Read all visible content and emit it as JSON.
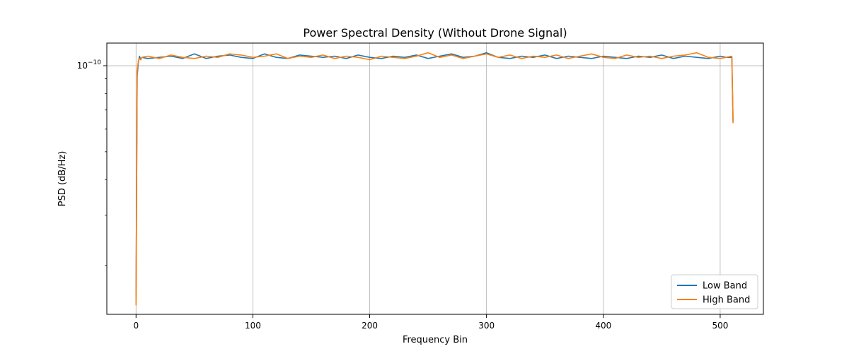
{
  "chart_data": {
    "type": "line",
    "title": "Power Spectral Density (Without Drone Signal)",
    "xlabel": "Frequency Bin",
    "ylabel": "PSD (dB/Hz)",
    "y_scale": "log",
    "xlim": [
      -25,
      537
    ],
    "ylim": [
      1.35e-11,
      1.2e-10
    ],
    "x_ticks": [
      0,
      100,
      200,
      300,
      400,
      500
    ],
    "x_tick_labels": [
      "0",
      "100",
      "200",
      "300",
      "400",
      "500"
    ],
    "y_ticks": [
      1e-10
    ],
    "y_tick_labels": [
      {
        "base": "10",
        "exp": "−10"
      }
    ],
    "y_minor_ticks": [
      2e-11,
      3e-11,
      4e-11,
      5e-11,
      6e-11,
      7e-11,
      8e-11,
      9e-11
    ],
    "grid": true,
    "legend_position": "lower-right",
    "series": [
      {
        "name": "Low Band",
        "color": "#1f77b4",
        "x": [
          0,
          1,
          2,
          3,
          4,
          5,
          10,
          20,
          30,
          40,
          50,
          60,
          70,
          80,
          90,
          100,
          110,
          120,
          130,
          140,
          150,
          160,
          170,
          180,
          190,
          200,
          210,
          220,
          230,
          240,
          250,
          260,
          270,
          280,
          290,
          300,
          310,
          320,
          330,
          340,
          350,
          360,
          370,
          380,
          390,
          400,
          410,
          420,
          430,
          440,
          450,
          460,
          470,
          480,
          490,
          500,
          505,
          510,
          511
        ],
        "y": [
          1.5e-11,
          9.2e-11,
          1.03e-10,
          1.08e-10,
          1.05e-10,
          1.07e-10,
          1.06e-10,
          1.07e-10,
          1.08e-10,
          1.06e-10,
          1.1e-10,
          1.06e-10,
          1.08e-10,
          1.09e-10,
          1.07e-10,
          1.06e-10,
          1.1e-10,
          1.07e-10,
          1.06e-10,
          1.09e-10,
          1.08e-10,
          1.07e-10,
          1.08e-10,
          1.06e-10,
          1.09e-10,
          1.07e-10,
          1.06e-10,
          1.08e-10,
          1.07e-10,
          1.09e-10,
          1.06e-10,
          1.08e-10,
          1.1e-10,
          1.07e-10,
          1.08e-10,
          1.11e-10,
          1.07e-10,
          1.06e-10,
          1.08e-10,
          1.07e-10,
          1.09e-10,
          1.06e-10,
          1.08e-10,
          1.07e-10,
          1.06e-10,
          1.08e-10,
          1.07e-10,
          1.06e-10,
          1.08e-10,
          1.07e-10,
          1.09e-10,
          1.06e-10,
          1.08e-10,
          1.07e-10,
          1.06e-10,
          1.08e-10,
          1.07e-10,
          1.07e-10,
          6.4e-11
        ]
      },
      {
        "name": "High Band",
        "color": "#ff7f0e",
        "x": [
          0,
          1,
          2,
          3,
          4,
          5,
          10,
          20,
          30,
          40,
          50,
          60,
          70,
          80,
          90,
          100,
          110,
          120,
          130,
          140,
          150,
          160,
          170,
          180,
          190,
          200,
          210,
          220,
          230,
          240,
          250,
          260,
          270,
          280,
          290,
          300,
          310,
          320,
          330,
          340,
          350,
          360,
          370,
          380,
          390,
          400,
          410,
          420,
          430,
          440,
          450,
          460,
          470,
          480,
          490,
          500,
          505,
          510,
          511
        ],
        "y": [
          1.45e-11,
          9.6e-11,
          1.04e-10,
          1.06e-10,
          1.05e-10,
          1.07e-10,
          1.08e-10,
          1.06e-10,
          1.09e-10,
          1.07e-10,
          1.06e-10,
          1.08e-10,
          1.07e-10,
          1.1e-10,
          1.09e-10,
          1.07e-10,
          1.08e-10,
          1.1e-10,
          1.06e-10,
          1.08e-10,
          1.07e-10,
          1.09e-10,
          1.06e-10,
          1.08e-10,
          1.07e-10,
          1.05e-10,
          1.08e-10,
          1.07e-10,
          1.06e-10,
          1.08e-10,
          1.11e-10,
          1.07e-10,
          1.09e-10,
          1.06e-10,
          1.08e-10,
          1.1e-10,
          1.07e-10,
          1.09e-10,
          1.06e-10,
          1.08e-10,
          1.07e-10,
          1.09e-10,
          1.06e-10,
          1.08e-10,
          1.1e-10,
          1.07e-10,
          1.06e-10,
          1.09e-10,
          1.07e-10,
          1.08e-10,
          1.06e-10,
          1.08e-10,
          1.09e-10,
          1.11e-10,
          1.07e-10,
          1.06e-10,
          1.07e-10,
          1.08e-10,
          6.3e-11
        ]
      }
    ]
  }
}
